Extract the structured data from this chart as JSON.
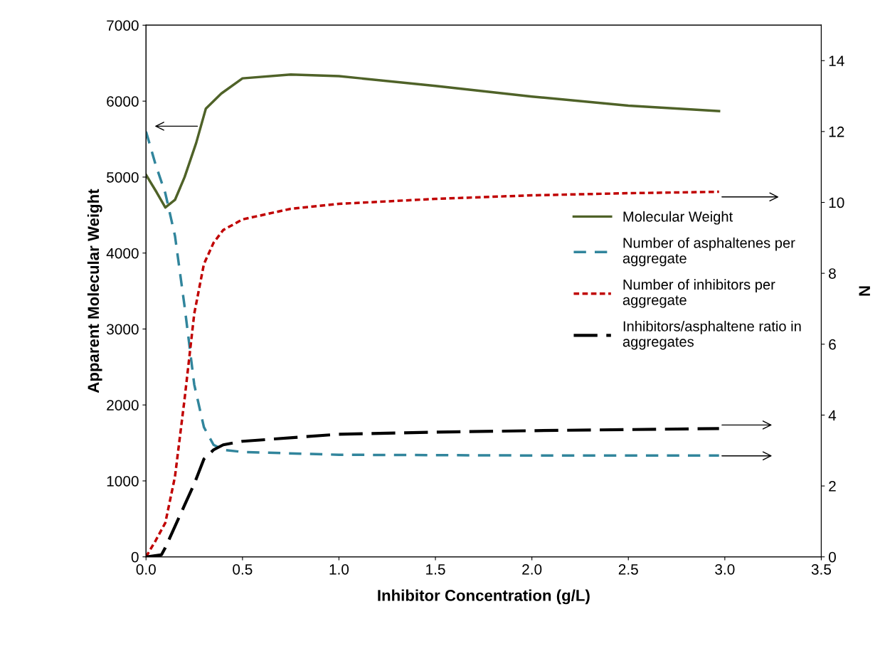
{
  "chart_data": {
    "type": "line",
    "xlabel": "Inhibitor Concentration (g/L)",
    "ylabel": "Apparent Molecular Weight",
    "y2label": "N",
    "xlim": [
      0,
      3.5
    ],
    "xticks": [
      {
        "value": 0,
        "label": "0.0"
      },
      {
        "value": 0.5,
        "label": "0.5"
      },
      {
        "value": 1,
        "label": "1.0"
      },
      {
        "value": 1.5,
        "label": "1.5"
      },
      {
        "value": 2,
        "label": "2.0"
      },
      {
        "value": 2.5,
        "label": "2.5"
      },
      {
        "value": 3,
        "label": "3.0"
      },
      {
        "value": 3.5,
        "label": "3.5"
      }
    ],
    "ylim": [
      0,
      7000
    ],
    "yticks": [
      0,
      1000,
      2000,
      3000,
      4000,
      5000,
      6000,
      7000
    ],
    "y2lim": [
      0,
      15
    ],
    "y2ticks": [
      0,
      2,
      4,
      6,
      8,
      10,
      12,
      14
    ],
    "grid": false,
    "legend": "right",
    "marker": "none",
    "series": [
      {
        "name": "Molecular Weight",
        "color": "#4f6228",
        "line_style": "solid",
        "x": [
          0,
          0.055,
          0.1,
          0.15,
          0.2,
          0.26,
          0.31,
          0.39,
          0.5,
          0.75,
          1.0,
          1.5,
          2.0,
          2.5,
          2.97
        ],
        "values": [
          5030,
          4800,
          4600,
          4700,
          5000,
          5450,
          5900,
          6100,
          6300,
          6350,
          6330,
          6200,
          6060,
          5940,
          5870
        ]
      },
      {
        "name": "Number of asphaltenes per\naggregate",
        "color": "#31859c",
        "line_style": "dashed",
        "axis": "y2",
        "x": [
          0,
          0.05,
          0.1,
          0.15,
          0.2,
          0.25,
          0.3,
          0.35,
          0.4,
          0.5,
          1.0,
          2.0,
          2.97
        ],
        "values": [
          12.0,
          11.06,
          10.26,
          9.06,
          7.06,
          4.86,
          3.66,
          3.16,
          3.02,
          2.96,
          2.88,
          2.86,
          2.86
        ]
      },
      {
        "name": "Number of inhibitors per\naggregate",
        "color": "#c00000",
        "line_style": "dotted",
        "axis": "y2",
        "x": [
          0,
          0.05,
          0.1,
          0.15,
          0.2,
          0.25,
          0.3,
          0.35,
          0.4,
          0.5,
          0.75,
          1.0,
          1.5,
          2.0,
          2.5,
          2.97
        ],
        "values": [
          0,
          0.46,
          0.96,
          2.26,
          4.46,
          6.86,
          8.26,
          8.86,
          9.22,
          9.52,
          9.82,
          9.96,
          10.1,
          10.2,
          10.26,
          10.3
        ]
      },
      {
        "name": "Inhibitors/asphaltene ratio in\naggregates",
        "color": "#000000",
        "line_style": "longdash",
        "axis": "y2",
        "x": [
          0,
          0.08,
          0.1,
          0.15,
          0.2,
          0.25,
          0.3,
          0.35,
          0.4,
          0.5,
          1.0,
          1.5,
          2.0,
          2.97
        ],
        "values": [
          0,
          0.06,
          0.26,
          0.86,
          1.46,
          2.06,
          2.76,
          3.02,
          3.16,
          3.26,
          3.46,
          3.52,
          3.56,
          3.62
        ]
      }
    ]
  }
}
